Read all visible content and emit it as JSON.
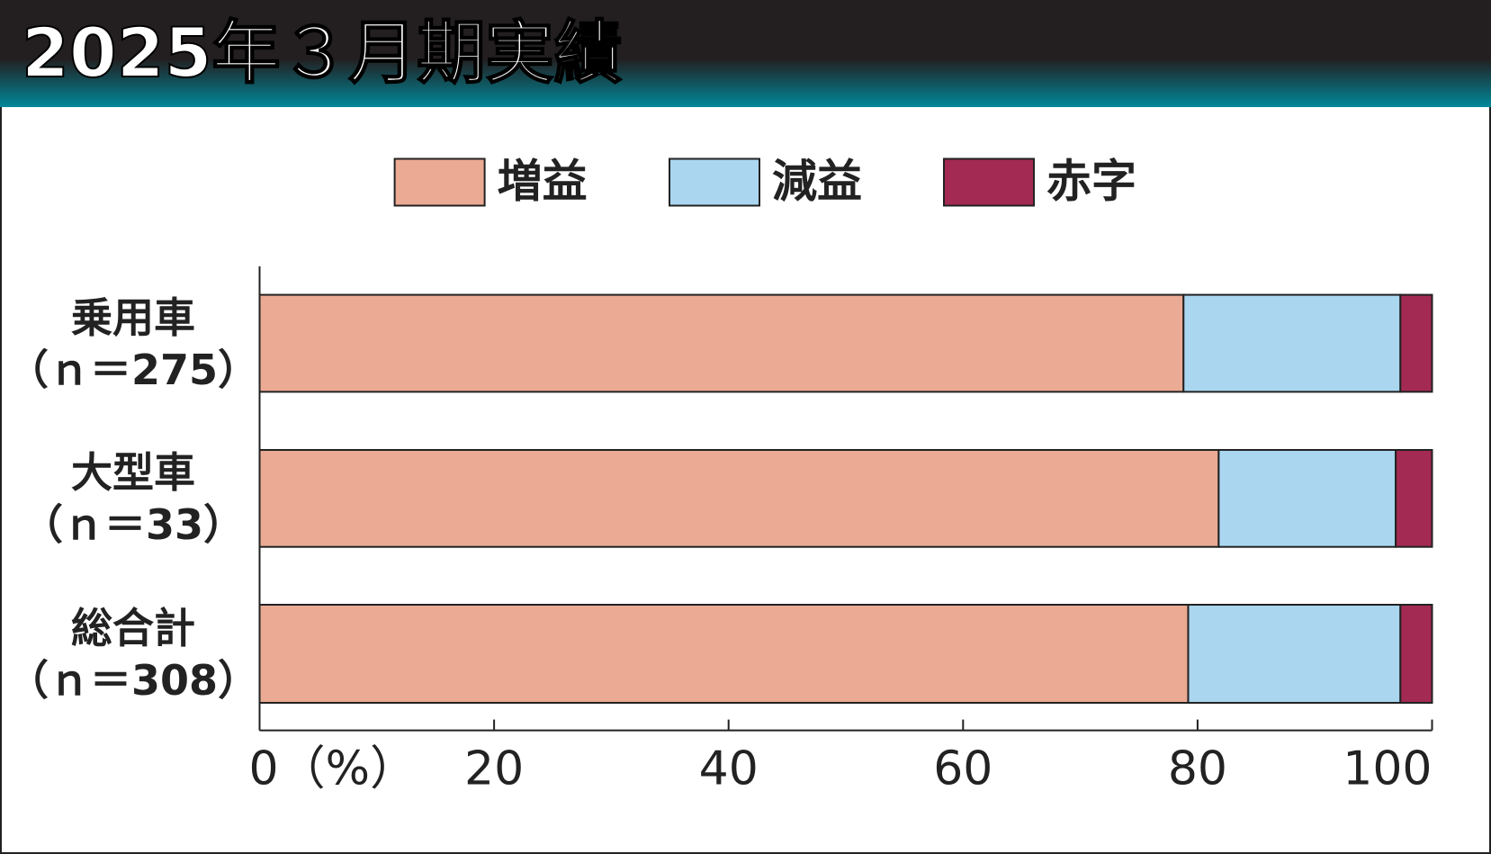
{
  "chart_data": {
    "type": "stacked-bar-horizontal",
    "title": "2025年３月期実績",
    "categories": [
      "乗用車\n（ｎ＝275）",
      "大型車\n（ｎ＝33）",
      "総合計\n（ｎ＝308）"
    ],
    "series": [
      {
        "name": "増益",
        "color": "#eaaa94",
        "values": [
          78.8,
          81.8,
          79.2
        ]
      },
      {
        "name": "減益",
        "color": "#aad6f0",
        "values": [
          18.5,
          15.1,
          18.1
        ]
      },
      {
        "name": "赤字",
        "color": "#a32a52",
        "values": [
          2.7,
          3.1,
          2.7
        ]
      }
    ],
    "xlim": [
      0,
      100
    ],
    "xticks": [
      {
        "value": 0,
        "label": "0（%）"
      },
      20,
      40,
      60,
      80,
      100
    ]
  }
}
